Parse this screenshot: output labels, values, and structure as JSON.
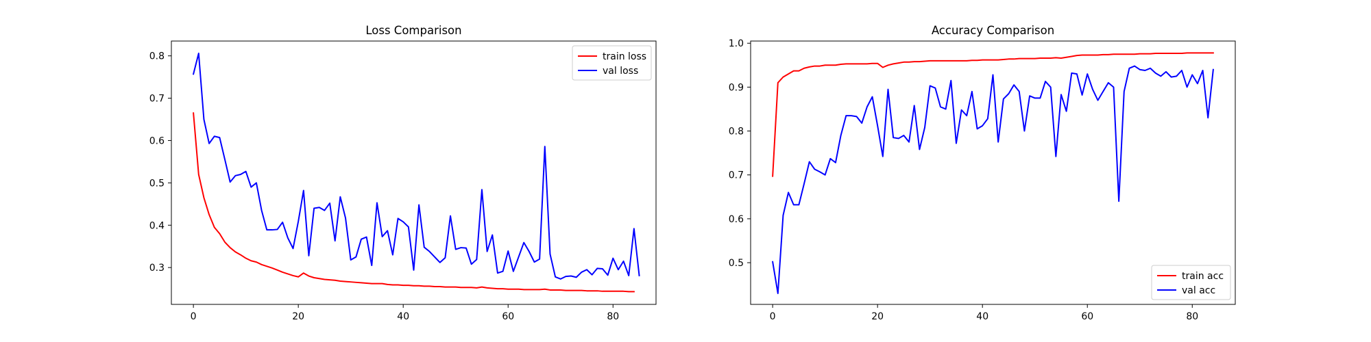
{
  "chart_data": [
    {
      "type": "line",
      "title": "Loss Comparison",
      "xlabel": "",
      "ylabel": "",
      "xlim": [
        -4.2,
        88.2
      ],
      "ylim": [
        0.213,
        0.835
      ],
      "xticks": [
        0,
        20,
        40,
        60,
        80
      ],
      "yticks": [
        0.3,
        0.4,
        0.5,
        0.6,
        0.7,
        0.8
      ],
      "ytick_labels": [
        "0.3",
        "0.4",
        "0.5",
        "0.6",
        "0.7",
        "0.8"
      ],
      "grid": false,
      "legend": "upper right",
      "series": [
        {
          "name": "train loss",
          "color": "#ff0000",
          "values": [
            0.665,
            0.52,
            0.465,
            0.425,
            0.395,
            0.38,
            0.36,
            0.347,
            0.337,
            0.33,
            0.322,
            0.316,
            0.313,
            0.307,
            0.303,
            0.299,
            0.294,
            0.289,
            0.285,
            0.281,
            0.278,
            0.287,
            0.28,
            0.276,
            0.274,
            0.272,
            0.271,
            0.27,
            0.268,
            0.267,
            0.266,
            0.265,
            0.264,
            0.263,
            0.262,
            0.262,
            0.262,
            0.26,
            0.259,
            0.259,
            0.258,
            0.258,
            0.257,
            0.257,
            0.256,
            0.256,
            0.255,
            0.255,
            0.254,
            0.254,
            0.254,
            0.253,
            0.253,
            0.253,
            0.252,
            0.254,
            0.252,
            0.251,
            0.25,
            0.25,
            0.249,
            0.249,
            0.249,
            0.248,
            0.248,
            0.248,
            0.248,
            0.249,
            0.247,
            0.247,
            0.247,
            0.246,
            0.246,
            0.246,
            0.246,
            0.245,
            0.245,
            0.245,
            0.244,
            0.244,
            0.244,
            0.244,
            0.244,
            0.243,
            0.243
          ]
        },
        {
          "name": "val loss",
          "color": "#0000ff",
          "values": [
            0.757,
            0.806,
            0.65,
            0.593,
            0.61,
            0.607,
            0.555,
            0.502,
            0.517,
            0.52,
            0.527,
            0.49,
            0.5,
            0.435,
            0.389,
            0.389,
            0.39,
            0.407,
            0.37,
            0.345,
            0.409,
            0.482,
            0.328,
            0.44,
            0.442,
            0.435,
            0.452,
            0.363,
            0.467,
            0.417,
            0.318,
            0.325,
            0.367,
            0.372,
            0.305,
            0.453,
            0.373,
            0.387,
            0.33,
            0.416,
            0.408,
            0.396,
            0.294,
            0.448,
            0.348,
            0.338,
            0.325,
            0.312,
            0.323,
            0.422,
            0.343,
            0.347,
            0.346,
            0.308,
            0.319,
            0.484,
            0.338,
            0.377,
            0.287,
            0.291,
            0.339,
            0.291,
            0.325,
            0.359,
            0.338,
            0.313,
            0.32,
            0.586,
            0.332,
            0.278,
            0.273,
            0.279,
            0.28,
            0.277,
            0.289,
            0.295,
            0.283,
            0.298,
            0.297,
            0.282,
            0.322,
            0.295,
            0.315,
            0.281,
            0.392,
            0.281
          ]
        }
      ]
    },
    {
      "type": "line",
      "title": "Accuracy Comparison",
      "xlabel": "",
      "ylabel": "",
      "xlim": [
        -4.2,
        88.2
      ],
      "ylim": [
        0.405,
        1.005
      ],
      "xticks": [
        0,
        20,
        40,
        60,
        80
      ],
      "yticks": [
        0.5,
        0.6,
        0.7,
        0.8,
        0.9,
        1.0
      ],
      "ytick_labels": [
        "0.5",
        "0.6",
        "0.7",
        "0.8",
        "0.9",
        "1.0"
      ],
      "grid": false,
      "legend": "lower right",
      "series": [
        {
          "name": "train acc",
          "color": "#ff0000",
          "values": [
            0.697,
            0.91,
            0.923,
            0.93,
            0.937,
            0.937,
            0.943,
            0.946,
            0.948,
            0.948,
            0.95,
            0.95,
            0.95,
            0.952,
            0.953,
            0.953,
            0.953,
            0.953,
            0.953,
            0.954,
            0.954,
            0.945,
            0.95,
            0.953,
            0.955,
            0.957,
            0.957,
            0.958,
            0.958,
            0.959,
            0.96,
            0.96,
            0.96,
            0.96,
            0.96,
            0.96,
            0.96,
            0.96,
            0.961,
            0.961,
            0.962,
            0.962,
            0.962,
            0.962,
            0.963,
            0.964,
            0.964,
            0.965,
            0.965,
            0.965,
            0.965,
            0.966,
            0.966,
            0.966,
            0.967,
            0.966,
            0.968,
            0.97,
            0.972,
            0.973,
            0.973,
            0.973,
            0.973,
            0.974,
            0.974,
            0.975,
            0.975,
            0.975,
            0.975,
            0.975,
            0.976,
            0.976,
            0.976,
            0.977,
            0.977,
            0.977,
            0.977,
            0.977,
            0.977,
            0.978,
            0.978,
            0.978,
            0.978,
            0.978,
            0.978
          ]
        },
        {
          "name": "val acc",
          "color": "#0000ff",
          "values": [
            0.502,
            0.43,
            0.608,
            0.66,
            0.632,
            0.632,
            0.68,
            0.73,
            0.713,
            0.707,
            0.7,
            0.737,
            0.728,
            0.79,
            0.835,
            0.835,
            0.833,
            0.818,
            0.855,
            0.878,
            0.812,
            0.742,
            0.895,
            0.785,
            0.783,
            0.79,
            0.775,
            0.858,
            0.758,
            0.808,
            0.903,
            0.898,
            0.855,
            0.85,
            0.915,
            0.772,
            0.848,
            0.835,
            0.89,
            0.805,
            0.812,
            0.828,
            0.928,
            0.775,
            0.873,
            0.885,
            0.905,
            0.89,
            0.8,
            0.88,
            0.875,
            0.875,
            0.913,
            0.9,
            0.742,
            0.883,
            0.845,
            0.932,
            0.93,
            0.882,
            0.93,
            0.895,
            0.87,
            0.89,
            0.91,
            0.9,
            0.64,
            0.89,
            0.943,
            0.948,
            0.94,
            0.938,
            0.943,
            0.932,
            0.925,
            0.935,
            0.923,
            0.925,
            0.938,
            0.9,
            0.928,
            0.908,
            0.938,
            0.83,
            0.94
          ]
        }
      ]
    }
  ]
}
